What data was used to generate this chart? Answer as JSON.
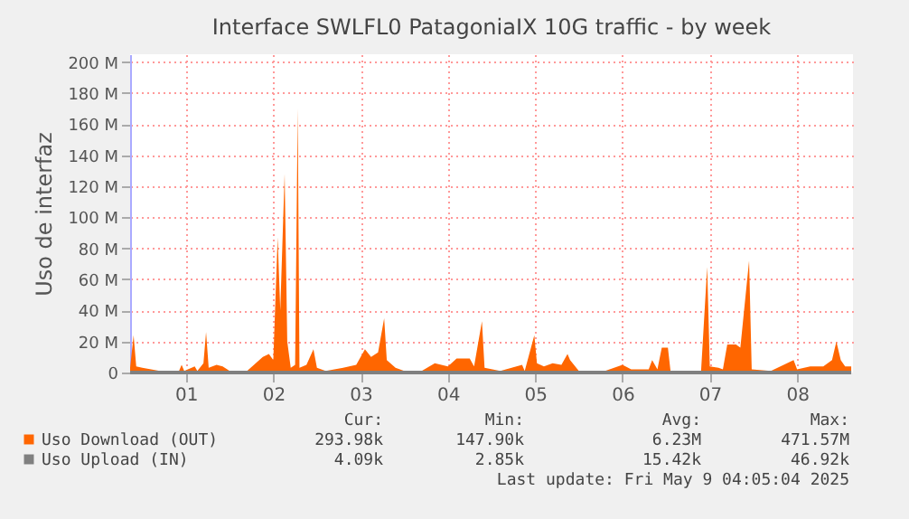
{
  "chart_data": {
    "type": "area",
    "title": "Interface SWLFL0 PatagoniaIX 10G traffic - by week",
    "ylabel": "Uso de interfaz",
    "xlim": [
      0.36,
      8.64
    ],
    "ylim": [
      0,
      205
    ],
    "xticks": [
      {
        "value": 1,
        "label": "01"
      },
      {
        "value": 2,
        "label": "02"
      },
      {
        "value": 3,
        "label": "03"
      },
      {
        "value": 4,
        "label": "04"
      },
      {
        "value": 5,
        "label": "05"
      },
      {
        "value": 6,
        "label": "06"
      },
      {
        "value": 7,
        "label": "07"
      },
      {
        "value": 8,
        "label": "08"
      }
    ],
    "yticks": [
      0,
      {
        "value": 20,
        "label": "20 M"
      },
      {
        "value": 40,
        "label": "40 M"
      },
      {
        "value": 60,
        "label": "60 M"
      },
      {
        "value": 80,
        "label": "80 M"
      },
      {
        "value": 100,
        "label": "100 M"
      },
      {
        "value": 120,
        "label": "120 M"
      },
      {
        "value": 140,
        "label": "140 M"
      },
      {
        "value": 160,
        "label": "160 M"
      },
      {
        "value": 180,
        "label": "180 M"
      },
      {
        "value": 200,
        "label": "200 M"
      }
    ],
    "grid": true,
    "legend": "bottom",
    "series": [
      {
        "name": "Uso Download (OUT)",
        "color": "#ff6600",
        "x": [
          0.36,
          0.4,
          0.43,
          0.5,
          0.6,
          0.7,
          0.8,
          0.92,
          0.95,
          0.98,
          1.1,
          1.13,
          1.2,
          1.23,
          1.26,
          1.35,
          1.42,
          1.5,
          1.7,
          1.88,
          1.95,
          2.0,
          2.05,
          2.08,
          2.13,
          2.16,
          2.2,
          2.25,
          2.28,
          2.3,
          2.38,
          2.46,
          2.5,
          2.6,
          2.8,
          2.95,
          3.05,
          3.12,
          3.2,
          3.27,
          3.3,
          3.4,
          3.5,
          3.7,
          3.85,
          4.0,
          4.1,
          4.25,
          4.3,
          4.39,
          4.42,
          4.6,
          4.85,
          4.88,
          4.99,
          5.02,
          5.1,
          5.2,
          5.3,
          5.37,
          5.4,
          5.5,
          5.8,
          6.0,
          6.1,
          6.3,
          6.34,
          6.4,
          6.45,
          6.52,
          6.55,
          6.9,
          6.97,
          7.0,
          7.1,
          7.15,
          7.2,
          7.3,
          7.35,
          7.45,
          7.48,
          7.7,
          7.96,
          8.0,
          8.15,
          8.3,
          8.4,
          8.45,
          8.5,
          8.55,
          8.62
        ],
        "values": [
          3,
          24,
          4,
          3,
          2,
          1,
          1,
          1,
          5,
          1,
          4,
          1,
          6,
          26,
          3,
          5,
          4,
          1,
          1,
          10,
          12,
          8,
          87,
          40,
          128,
          20,
          3,
          5,
          170,
          3,
          5,
          15,
          3,
          1,
          3,
          5,
          15,
          10,
          13,
          35,
          8,
          3,
          1,
          1,
          6,
          4,
          9,
          9,
          4,
          33,
          3,
          1,
          5,
          1,
          24,
          6,
          4,
          6,
          5,
          12,
          8,
          1,
          1,
          5,
          2,
          2,
          8,
          2,
          16,
          16,
          1,
          1,
          68,
          4,
          3,
          2,
          18,
          18,
          16,
          72,
          2,
          1,
          8,
          2,
          4,
          4,
          8,
          20,
          8,
          4,
          4
        ]
      },
      {
        "name": "Uso Upload (IN)",
        "color": "#808080",
        "type": "line",
        "x": [
          0.36,
          1,
          2,
          3,
          4,
          5,
          6,
          7,
          8,
          8.62
        ],
        "values": [
          0,
          0,
          0,
          0,
          0,
          0,
          0,
          0,
          0,
          0
        ]
      }
    ],
    "annotations": [
      "Cur:",
      "Min:",
      "Avg:",
      "Max:",
      "293.98k",
      "147.90k",
      "6.23M",
      "471.57M",
      "4.09k",
      "2.85k",
      "15.42k",
      "46.92k",
      "Last update: Fri May  9 04:05:04 2025"
    ]
  }
}
